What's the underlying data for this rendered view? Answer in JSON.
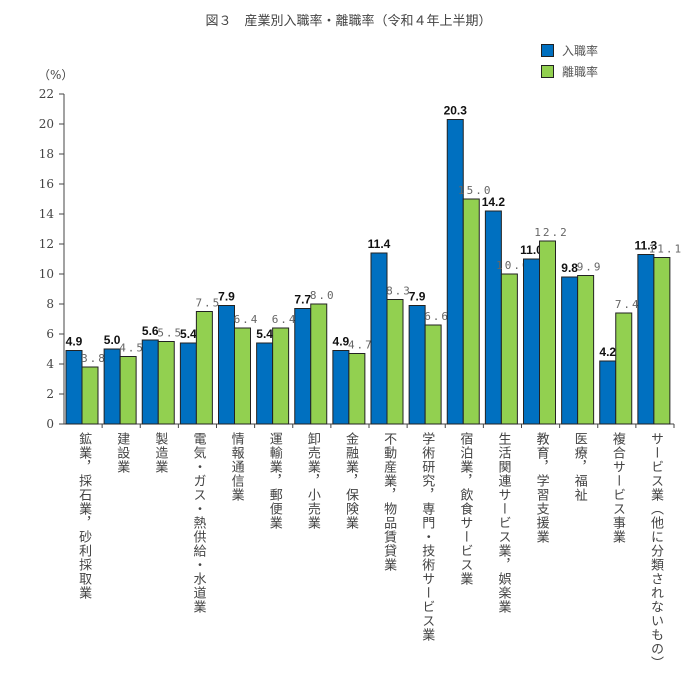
{
  "chart_data": {
    "type": "bar",
    "title": "図３　産業別入職率・離職率（令和４年上半期）",
    "ylabel": "（%）",
    "ylim": [
      0,
      22
    ],
    "yticks": [
      0,
      2,
      4,
      6,
      8,
      10,
      12,
      14,
      16,
      18,
      20,
      22
    ],
    "legend_placement": "top-right",
    "categories": [
      "鉱業，採石業，砂利採取業",
      "建設業",
      "製造業",
      "電気・ガス・熱供給・水道業",
      "情報通信業",
      "運輸業，郵便業",
      "卸売業，小売業",
      "金融業，保険業",
      "不動産業，物品賃貸業",
      "学術研究，専門・技術サービス業",
      "宿泊業，飲食サービス業",
      "生活関連サービス業，娯楽業",
      "教育，学習支援業",
      "医療，福祉",
      "複合サービス事業",
      "サービス業（他に分類されないもの）"
    ],
    "series": [
      {
        "name": "入職率",
        "color": "#0070c0",
        "values": [
          4.9,
          5.0,
          5.6,
          5.4,
          7.9,
          5.4,
          7.7,
          4.9,
          11.4,
          7.9,
          20.3,
          14.2,
          11.0,
          9.8,
          4.2,
          11.3
        ]
      },
      {
        "name": "離職率",
        "color": "#92d050",
        "values": [
          3.8,
          4.5,
          5.5,
          7.5,
          6.4,
          6.4,
          8.0,
          4.7,
          8.3,
          6.6,
          15.0,
          10.0,
          12.2,
          9.9,
          7.4,
          11.1
        ]
      }
    ]
  }
}
